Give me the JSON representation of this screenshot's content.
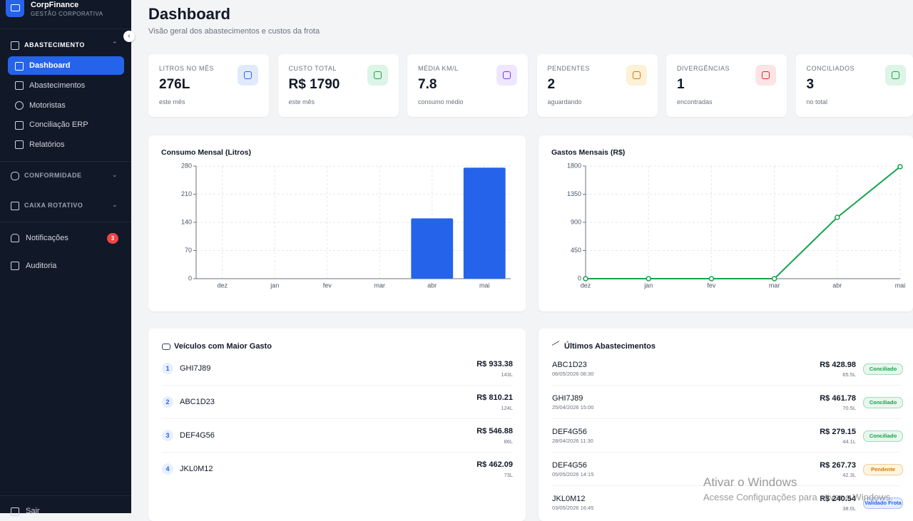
{
  "sidebar": {
    "brand": "CorpFinance",
    "tagline": "GESTÃO CORPORATIVA",
    "groups": [
      {
        "title": "ABASTECIMENTO",
        "items": [
          "Dashboard",
          "Abastecimentos",
          "Motoristas",
          "Conciliação ERP",
          "Relatórios"
        ]
      },
      {
        "title": "CONFORMIDADE"
      },
      {
        "title": "CAIXA ROTATIVO"
      }
    ],
    "links": [
      {
        "label": "Notificações",
        "badge": 3
      },
      {
        "label": "Auditoria"
      }
    ],
    "logout": "Sair"
  },
  "header": {
    "title": "Dashboard",
    "subtitle": "Visão geral dos abastecimentos e custos da frota"
  },
  "stats": [
    {
      "label": "LITROS NO MÊS",
      "value": "276L",
      "note": "este mês",
      "color": "#2563eb",
      "bg": "#e0eaff"
    },
    {
      "label": "CUSTO TOTAL",
      "value": "R$ 1790",
      "note": "este mês",
      "color": "#16a34a",
      "bg": "#dcf5e6"
    },
    {
      "label": "MÉDIA KM/L",
      "value": "7.8",
      "note": "consumo médio",
      "color": "#7c3aed",
      "bg": "#efe6ff"
    },
    {
      "label": "PENDENTES",
      "value": "2",
      "note": "aguardando",
      "color": "#d97706",
      "bg": "#fdf1d6"
    },
    {
      "label": "DIVERGÊNCIAS",
      "value": "1",
      "note": "encontradas",
      "color": "#dc2626",
      "bg": "#fde4e4"
    },
    {
      "label": "CONCILIADOS",
      "value": "3",
      "note": "no total",
      "color": "#16a34a",
      "bg": "#dcf5e6"
    }
  ],
  "chart_data": [
    {
      "type": "bar",
      "title": "Consumo Mensal (Litros)",
      "categories": [
        "dez",
        "jan",
        "fev",
        "mar",
        "abr",
        "mai"
      ],
      "values": [
        0,
        0,
        0,
        0,
        150,
        276
      ],
      "color": "#2563eb",
      "ylim": [
        0,
        280
      ],
      "yticks": [
        0,
        70,
        140,
        210,
        280
      ],
      "grid": true
    },
    {
      "type": "line",
      "title": "Gastos Mensais (R$)",
      "categories": [
        "dez",
        "jan",
        "fev",
        "mar",
        "abr",
        "mai"
      ],
      "values": [
        0,
        0,
        0,
        0,
        980,
        1790
      ],
      "color": "#16a34a",
      "ylim": [
        0,
        1800
      ],
      "yticks": [
        0,
        450,
        900,
        1350,
        1800
      ],
      "grid": true
    }
  ],
  "top_vehicles": {
    "title": "Veículos com Maior Gasto",
    "rows": [
      {
        "rank": 1,
        "plate": "GHI7J89",
        "amount": "R$ 933.38",
        "liters": "143L"
      },
      {
        "rank": 2,
        "plate": "ABC1D23",
        "amount": "R$ 810.21",
        "liters": "124L"
      },
      {
        "rank": 3,
        "plate": "DEF4G56",
        "amount": "R$ 546.88",
        "liters": "86L"
      },
      {
        "rank": 4,
        "plate": "JKL0M12",
        "amount": "R$ 462.09",
        "liters": "73L"
      }
    ]
  },
  "recent": {
    "title": "Últimos Abastecimentos",
    "rows": [
      {
        "plate": "ABC1D23",
        "datetime": "06/05/2026 08:30",
        "amount": "R$ 428.98",
        "liters": "65.5L",
        "status": {
          "label": "Conciliado",
          "color": "#16a34a",
          "bg": "#e7f7ee"
        }
      },
      {
        "plate": "GHI7J89",
        "datetime": "25/04/2026 15:00",
        "amount": "R$ 461.78",
        "liters": "70.5L",
        "status": {
          "label": "Conciliado",
          "color": "#16a34a",
          "bg": "#e7f7ee"
        }
      },
      {
        "plate": "DEF4G56",
        "datetime": "28/04/2026 11:30",
        "amount": "R$ 279.15",
        "liters": "44.1L",
        "status": {
          "label": "Conciliado",
          "color": "#16a34a",
          "bg": "#e7f7ee"
        }
      },
      {
        "plate": "DEF4G56",
        "datetime": "05/05/2026 14:15",
        "amount": "R$ 267.73",
        "liters": "42.3L",
        "status": {
          "label": "Pendente",
          "color": "#d97706",
          "bg": "#fef5e0"
        }
      },
      {
        "plate": "JKL0M12",
        "datetime": "03/05/2026 16:45",
        "amount": "R$ 240.54",
        "liters": "38.0L",
        "status": {
          "label": "Validado Frota",
          "color": "#2563eb",
          "bg": "#e6eeff"
        }
      }
    ]
  },
  "watermark": {
    "title": "Ativar o Windows",
    "text": "Acesse Configurações para ativar o Windows."
  }
}
